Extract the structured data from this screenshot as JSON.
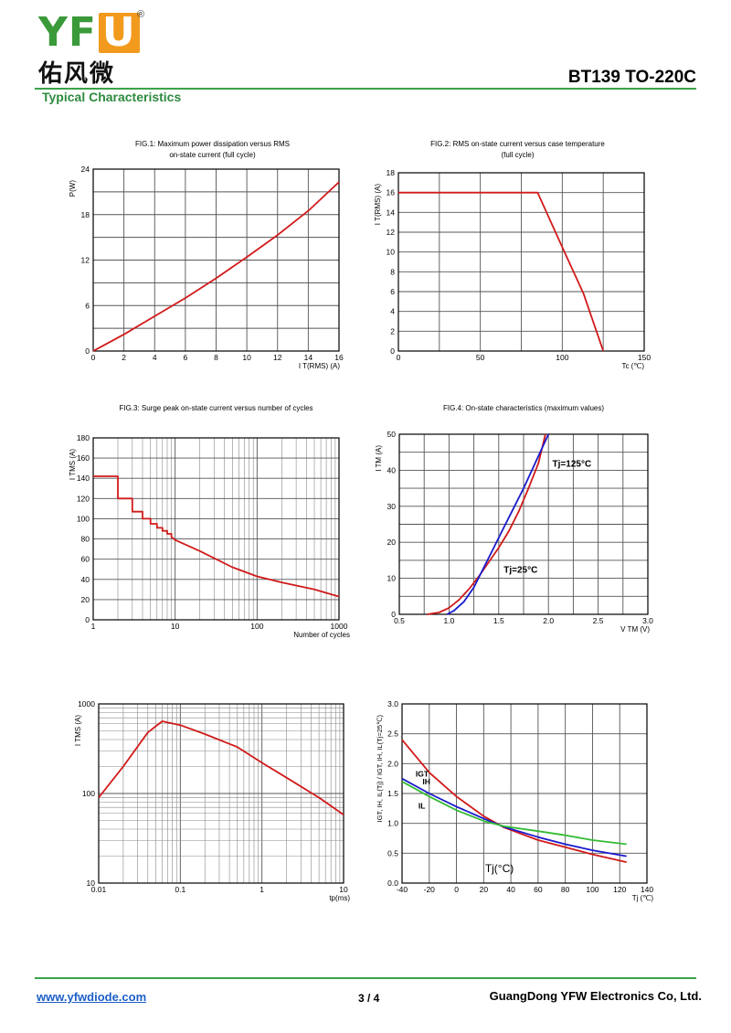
{
  "header": {
    "brand_text": "YFW",
    "registered_mark": "®",
    "brand_cn": "佑风微",
    "doc_title": "BT139 TO-220C",
    "section_title": "Typical Characteristics"
  },
  "footer": {
    "website": "www.yfwdiode.com",
    "page": "3 / 4",
    "company": "GuangDong YFW Electronics Co, Ltd."
  },
  "colors": {
    "accent_green": "#3aa34a",
    "brand_orange": "#f29a1d",
    "curve_red": "#d11a1a",
    "curve_blue": "#1a1acc",
    "curve_green": "#33bb33",
    "link_blue": "#1d5fc7"
  },
  "chart_data": [
    {
      "id": "fig1",
      "type": "line",
      "title_lines": [
        "FIG.1: Maximum power dissipation versus RMS",
        "on-state current (full cycle)"
      ],
      "ylabel": "P(W)",
      "xlabel": "I T(RMS) (A)",
      "xlim": [
        0,
        16
      ],
      "ylim": [
        0,
        24
      ],
      "x_ticks": [
        0,
        2,
        4,
        6,
        8,
        10,
        12,
        14,
        16
      ],
      "y_ticks": [
        0,
        6,
        12,
        18,
        24
      ],
      "x_grid": [
        0,
        2,
        4,
        6,
        8,
        10,
        12,
        14,
        16
      ],
      "y_grid": [
        0,
        3,
        6,
        9,
        12,
        15,
        18,
        21,
        24
      ],
      "series": [
        {
          "color": "#d11a1a",
          "x": [
            0,
            2,
            4,
            6,
            8,
            10,
            12,
            14,
            16
          ],
          "y": [
            0,
            2.2,
            4.6,
            7.0,
            9.6,
            12.4,
            15.3,
            18.5,
            22.3
          ]
        }
      ]
    },
    {
      "id": "fig2",
      "type": "line",
      "title_lines": [
        "FIG.2: RMS on-state current versus case temperature",
        "(full cycle)"
      ],
      "ylabel": "I T(RMS) (A)",
      "xlabel": "Tc (℃)",
      "xlim": [
        0,
        150
      ],
      "ylim": [
        0,
        18
      ],
      "x_ticks": [
        0,
        50,
        100,
        150
      ],
      "y_ticks": [
        0,
        2,
        4,
        6,
        8,
        10,
        12,
        14,
        16,
        18
      ],
      "x_grid": [
        0,
        25,
        50,
        75,
        100,
        125,
        150
      ],
      "y_grid": [
        0,
        2,
        4,
        6,
        8,
        10,
        12,
        14,
        16,
        18
      ],
      "series": [
        {
          "color": "#d11a1a",
          "x": [
            0,
            85,
            100,
            113,
            125
          ],
          "y": [
            16,
            16,
            10.5,
            5.8,
            0
          ]
        }
      ]
    },
    {
      "id": "fig3",
      "type": "line",
      "title_lines": [
        "FIG.3: Surge peak on-state current versus number of cycles"
      ],
      "ylabel": "I TMS (A)",
      "xlabel": "Number of cycles",
      "x_scale": "log",
      "xlim": [
        1,
        1000
      ],
      "ylim": [
        0,
        180
      ],
      "x_ticks": [
        1,
        10,
        100,
        1000
      ],
      "y_ticks": [
        0,
        20,
        40,
        60,
        80,
        100,
        120,
        140,
        160,
        180
      ],
      "y_grid": [
        0,
        20,
        40,
        60,
        80,
        100,
        120,
        140,
        160,
        180
      ],
      "series": [
        {
          "color": "#d11a1a",
          "x": [
            1,
            2,
            2,
            3,
            3,
            4,
            4,
            5,
            5,
            6,
            6,
            7,
            7,
            8,
            8,
            9,
            9,
            10,
            20,
            50,
            100,
            200,
            500,
            1000
          ],
          "y": [
            142,
            142,
            120,
            120,
            107,
            107,
            100,
            100,
            95,
            95,
            91,
            91,
            88,
            88,
            85,
            85,
            82,
            79,
            68,
            52,
            43,
            37,
            30,
            23
          ]
        }
      ]
    },
    {
      "id": "fig4",
      "type": "line",
      "title_lines": [
        "FIG.4: On-state characteristics (maximum values)"
      ],
      "ylabel": "I TM (A)",
      "xlabel": "V TM (V)",
      "xlim": [
        0.5,
        3.0
      ],
      "ylim": [
        0,
        50
      ],
      "x_ticks": [
        0.5,
        1.0,
        1.5,
        2.0,
        2.5,
        3.0
      ],
      "x_tick_labels": [
        "0.5",
        "1.0",
        "1.5",
        "2.0",
        "2.5",
        "3.0"
      ],
      "y_ticks": [
        0,
        10,
        20,
        30,
        40,
        50
      ],
      "x_grid": [
        0.5,
        0.75,
        1.0,
        1.25,
        1.5,
        1.75,
        2.0,
        2.25,
        2.5,
        2.75,
        3.0
      ],
      "y_grid": [
        0,
        5,
        10,
        15,
        20,
        25,
        30,
        35,
        40,
        45,
        50
      ],
      "annotations": [
        "Tj=125°C",
        "Tj=25°C"
      ],
      "series": [
        {
          "color": "#d11a1a",
          "x": [
            0.78,
            0.9,
            1.0,
            1.1,
            1.2,
            1.3,
            1.4,
            1.5,
            1.6,
            1.7,
            1.8,
            1.9,
            1.97
          ],
          "y": [
            0,
            0.5,
            1.8,
            4.0,
            7.0,
            10.5,
            14.5,
            18.5,
            23.0,
            28.5,
            35.0,
            42.0,
            50
          ]
        },
        {
          "color": "#1a1acc",
          "x": [
            0.98,
            1.05,
            1.15,
            1.25,
            1.35,
            1.45,
            1.55,
            1.65,
            1.75,
            1.85,
            1.95,
            2.0
          ],
          "y": [
            0,
            1.0,
            3.5,
            7.5,
            13.0,
            18.5,
            24.0,
            29.5,
            35.0,
            41.0,
            47.0,
            50
          ]
        }
      ]
    },
    {
      "id": "fig5",
      "type": "line",
      "title_lines": [],
      "ylabel": "I TMS (A)",
      "xlabel": "tp(ms)",
      "x_scale": "log",
      "y_scale": "log",
      "xlim": [
        0.01,
        10
      ],
      "ylim": [
        10,
        1000
      ],
      "x_ticks": [
        0.01,
        0.1,
        1,
        10
      ],
      "x_tick_labels": [
        "0.01",
        "0.1",
        "1",
        "10"
      ],
      "y_ticks": [
        10,
        100,
        1000
      ],
      "series": [
        {
          "color": "#d11a1a",
          "x": [
            0.01,
            0.02,
            0.04,
            0.06,
            0.1,
            0.2,
            0.5,
            1,
            2,
            5,
            10
          ],
          "y": [
            90,
            200,
            480,
            640,
            580,
            460,
            330,
            220,
            150,
            90,
            58
          ]
        }
      ]
    },
    {
      "id": "fig6",
      "type": "line",
      "title_lines": [],
      "ylabel": "IGT, IH, IL(Tj) / IGT, IH, IL(Tj=25℃)",
      "xlabel": "Tj (℃)",
      "xlim": [
        -40,
        140
      ],
      "ylim": [
        0,
        3.0
      ],
      "x_ticks": [
        -40,
        -20,
        0,
        20,
        40,
        60,
        80,
        100,
        120,
        140
      ],
      "y_ticks": [
        0,
        0.5,
        1.0,
        1.5,
        2.0,
        2.5,
        3.0
      ],
      "y_tick_labels": [
        "0.0",
        "0.5",
        "1.0",
        "1.5",
        "2.0",
        "2.5",
        "3.0"
      ],
      "x_grid": [
        -40,
        -20,
        0,
        20,
        40,
        60,
        80,
        100,
        120,
        140
      ],
      "y_grid": [
        0,
        0.5,
        1.0,
        1.5,
        2.0,
        2.5,
        3.0
      ],
      "annotations": [
        "IGT",
        "IH",
        "IL",
        "Tj(°C)"
      ],
      "series": [
        {
          "name": "IGT",
          "color": "#d11a1a",
          "x": [
            -40,
            -20,
            0,
            20,
            35,
            60,
            80,
            100,
            125
          ],
          "y": [
            2.4,
            1.85,
            1.45,
            1.12,
            0.93,
            0.72,
            0.6,
            0.48,
            0.35
          ]
        },
        {
          "name": "IH",
          "color": "#1a1acc",
          "x": [
            -40,
            -20,
            0,
            20,
            35,
            60,
            80,
            100,
            125
          ],
          "y": [
            1.75,
            1.5,
            1.28,
            1.08,
            0.94,
            0.77,
            0.65,
            0.55,
            0.45
          ]
        },
        {
          "name": "IL",
          "color": "#33bb33",
          "x": [
            -40,
            -20,
            0,
            20,
            35,
            60,
            80,
            100,
            125
          ],
          "y": [
            1.7,
            1.45,
            1.22,
            1.04,
            0.95,
            0.87,
            0.8,
            0.72,
            0.65
          ]
        }
      ]
    }
  ]
}
